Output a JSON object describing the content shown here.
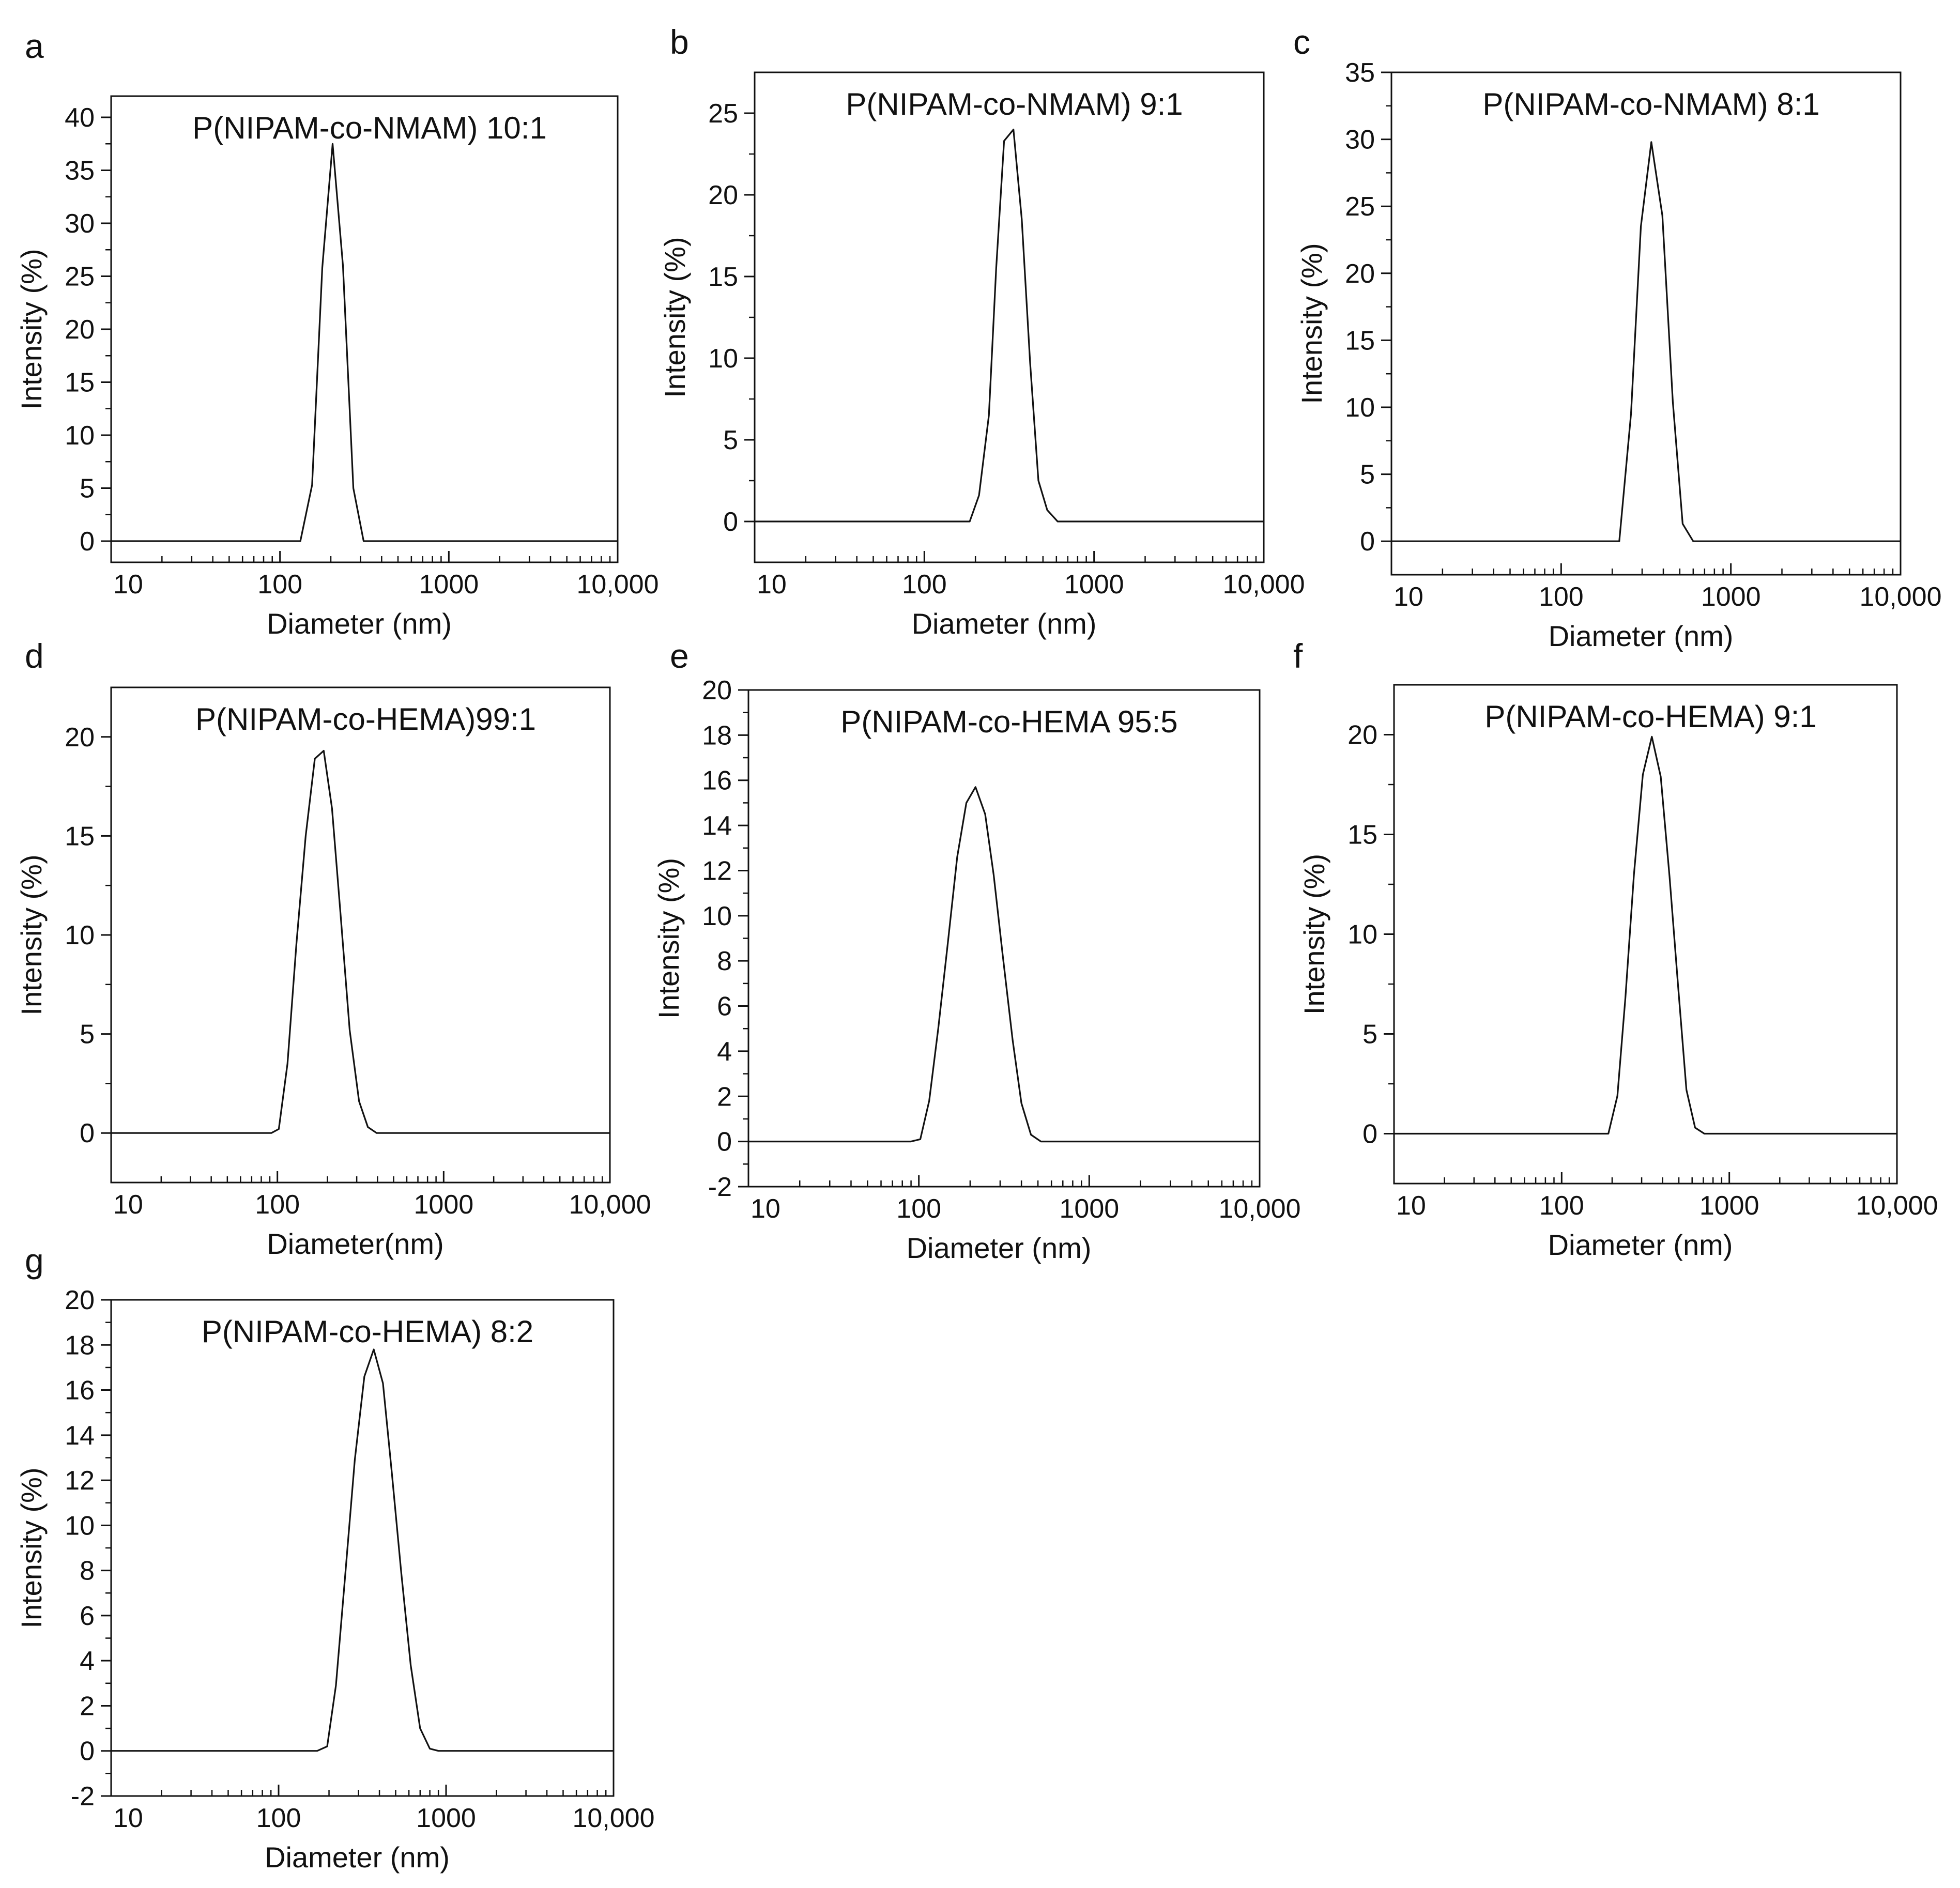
{
  "figure": {
    "caption": ""
  },
  "chart_data": [
    {
      "panel": "a",
      "type": "line",
      "title": "P(NIPAM-co-NMAM)  10:1",
      "xlabel": "Diameter (nm)",
      "ylabel": "Intensity (%)",
      "xscale": "log",
      "xlim": [
        10,
        10000
      ],
      "ylim": [
        -2,
        42
      ],
      "xticks": [
        10,
        100,
        1000,
        10000
      ],
      "xtick_labels": [
        "10",
        "100",
        "1000",
        "10,000"
      ],
      "yticks": [
        0,
        5,
        10,
        15,
        20,
        25,
        30,
        35,
        40
      ],
      "grid": false,
      "legend": "none",
      "series": [
        {
          "name": "P(NIPAM-co-NMAM) 10:1",
          "x": [
            10,
            132,
            155,
            178,
            205,
            236,
            272,
            313,
            10000
          ],
          "y": [
            0,
            0,
            5.3,
            25.8,
            37.5,
            26,
            5,
            0,
            0
          ]
        }
      ]
    },
    {
      "panel": "b",
      "type": "line",
      "title": "P(NIPAM-co-NMAM)  9:1",
      "xlabel": "Diameter (nm)",
      "ylabel": "Intensity (%)",
      "xscale": "log",
      "xlim": [
        10,
        10000
      ],
      "ylim": [
        -2.5,
        27.5
      ],
      "xticks": [
        10,
        100,
        1000,
        10000
      ],
      "xtick_labels": [
        "10",
        "100",
        "1000",
        "10,000"
      ],
      "yticks": [
        0,
        5,
        10,
        15,
        20,
        25
      ],
      "grid": false,
      "legend": "none",
      "series": [
        {
          "name": "P(NIPAM-co-NMAM) 9:1",
          "x": [
            10,
            185,
            210,
            240,
            265,
            295,
            335,
            375,
            420,
            470,
            530,
            610,
            10000
          ],
          "y": [
            0,
            0,
            1.6,
            6.5,
            15.5,
            23.3,
            24,
            18.5,
            9.7,
            2.5,
            0.7,
            0,
            0
          ]
        }
      ]
    },
    {
      "panel": "c",
      "type": "line",
      "title": "P(NIPAM-co-NMAM)  8:1",
      "xlabel": "Diameter (nm)",
      "ylabel": "Intensity (%)",
      "xscale": "log",
      "xlim": [
        10,
        10000
      ],
      "ylim": [
        -2.5,
        35
      ],
      "xticks": [
        10,
        100,
        1000,
        10000
      ],
      "xtick_labels": [
        "10",
        "100",
        "1000",
        "10,000"
      ],
      "yticks": [
        0,
        5,
        10,
        15,
        20,
        25,
        30,
        35
      ],
      "grid": false,
      "legend": "none",
      "series": [
        {
          "name": "P(NIPAM-co-NMAM) 8:1",
          "x": [
            10,
            220,
            258,
            295,
            340,
            395,
            455,
            520,
            600,
            10000
          ],
          "y": [
            0,
            0,
            9.5,
            23.5,
            29.8,
            24.3,
            10.4,
            1.3,
            0,
            0
          ]
        }
      ]
    },
    {
      "panel": "d",
      "type": "line",
      "title": "P(NIPAM-co-HEMA)99:1",
      "xlabel": "Diameter(nm)",
      "ylabel": "Intensity (%)",
      "xscale": "log",
      "xlim": [
        10,
        10000
      ],
      "ylim": [
        -2.5,
        22.5
      ],
      "xticks": [
        10,
        100,
        1000,
        10000
      ],
      "xtick_labels": [
        "10",
        "100",
        "1000",
        "10,000"
      ],
      "yticks": [
        0,
        5,
        10,
        15,
        20
      ],
      "grid": false,
      "legend": "none",
      "series": [
        {
          "name": "P(NIPAM-co-HEMA) 99:1",
          "x": [
            10,
            92,
            102,
            115,
            130,
            148,
            168,
            190,
            213,
            240,
            272,
            310,
            350,
            395,
            450,
            10000
          ],
          "y": [
            0,
            0,
            0.2,
            3.5,
            9.5,
            15,
            18.9,
            19.3,
            16.4,
            11,
            5.2,
            1.6,
            0.3,
            0,
            0,
            0
          ]
        }
      ]
    },
    {
      "panel": "e",
      "type": "line",
      "title": "P(NIPAM-co-HEMA 95:5",
      "xlabel": "Diameter (nm)",
      "ylabel": "Intensity (%)",
      "xscale": "log",
      "xlim": [
        10,
        10000
      ],
      "ylim": [
        -2,
        20
      ],
      "xticks": [
        10,
        100,
        1000,
        10000
      ],
      "xtick_labels": [
        "10",
        "100",
        "1000",
        "10,000"
      ],
      "yticks": [
        -2,
        0,
        2,
        4,
        6,
        8,
        10,
        12,
        14,
        16,
        18,
        20
      ],
      "grid": false,
      "legend": "none",
      "series": [
        {
          "name": "P(NIPAM-co-HEMA) 95:5",
          "x": [
            10,
            90,
            102,
            115,
            130,
            148,
            168,
            190,
            215,
            245,
            275,
            310,
            355,
            400,
            455,
            520,
            590,
            670,
            10000
          ],
          "y": [
            0,
            0,
            0.1,
            1.8,
            5,
            8.8,
            12.6,
            15,
            15.7,
            14.5,
            11.8,
            8.3,
            4.5,
            1.7,
            0.3,
            0,
            0,
            0,
            0
          ]
        }
      ]
    },
    {
      "panel": "f",
      "type": "line",
      "title": "P(NIPAM-co-HEMA)  9:1",
      "xlabel": "Diameter (nm)",
      "ylabel": "Intensity (%)",
      "xscale": "log",
      "xlim": [
        10,
        10000
      ],
      "ylim": [
        -2.5,
        22.5
      ],
      "xticks": [
        10,
        100,
        1000,
        10000
      ],
      "xtick_labels": [
        "10",
        "100",
        "1000",
        "10,000"
      ],
      "yticks": [
        0,
        5,
        10,
        15,
        20
      ],
      "grid": false,
      "legend": "none",
      "series": [
        {
          "name": "P(NIPAM-co-HEMA) 9:1",
          "x": [
            10,
            190,
            215,
            240,
            270,
            305,
            345,
            390,
            440,
            495,
            555,
            625,
            710,
            800,
            10000
          ],
          "y": [
            0,
            0,
            1.9,
            6.8,
            13,
            18,
            19.9,
            17.9,
            12.9,
            7.4,
            2.2,
            0.3,
            0,
            0,
            0
          ]
        }
      ]
    },
    {
      "panel": "g",
      "type": "line",
      "title": "P(NIPAM-co-HEMA)  8:2",
      "xlabel": "Diameter (nm)",
      "ylabel": "Intensity (%)",
      "xscale": "log",
      "xlim": [
        10,
        10000
      ],
      "ylim": [
        -2,
        20
      ],
      "xticks": [
        10,
        100,
        1000,
        10000
      ],
      "xtick_labels": [
        "10",
        "100",
        "1000",
        "10,000"
      ],
      "yticks": [
        -2,
        0,
        2,
        4,
        6,
        8,
        10,
        12,
        14,
        16,
        18,
        20
      ],
      "grid": false,
      "legend": "none",
      "series": [
        {
          "name": "P(NIPAM-co-HEMA) 8:2",
          "x": [
            10,
            170,
            195,
            220,
            250,
            285,
            325,
            370,
            420,
            475,
            540,
            615,
            700,
            800,
            900,
            10000
          ],
          "y": [
            0,
            0,
            0.2,
            2.9,
            7.8,
            12.9,
            16.6,
            17.8,
            16.3,
            12.3,
            7.9,
            3.8,
            1,
            0.1,
            0,
            0
          ]
        }
      ]
    }
  ]
}
